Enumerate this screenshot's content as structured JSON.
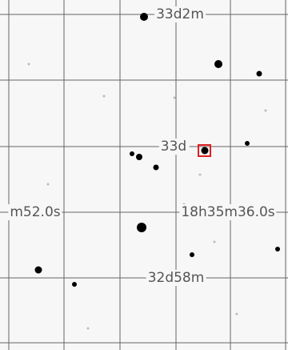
{
  "labels": {
    "top_dec": "33d2m",
    "center_dec": "33d",
    "left_ra": "m52.0s",
    "center_ra": "18h35m36.0s",
    "bottom_dec": "32d58m"
  }
}
